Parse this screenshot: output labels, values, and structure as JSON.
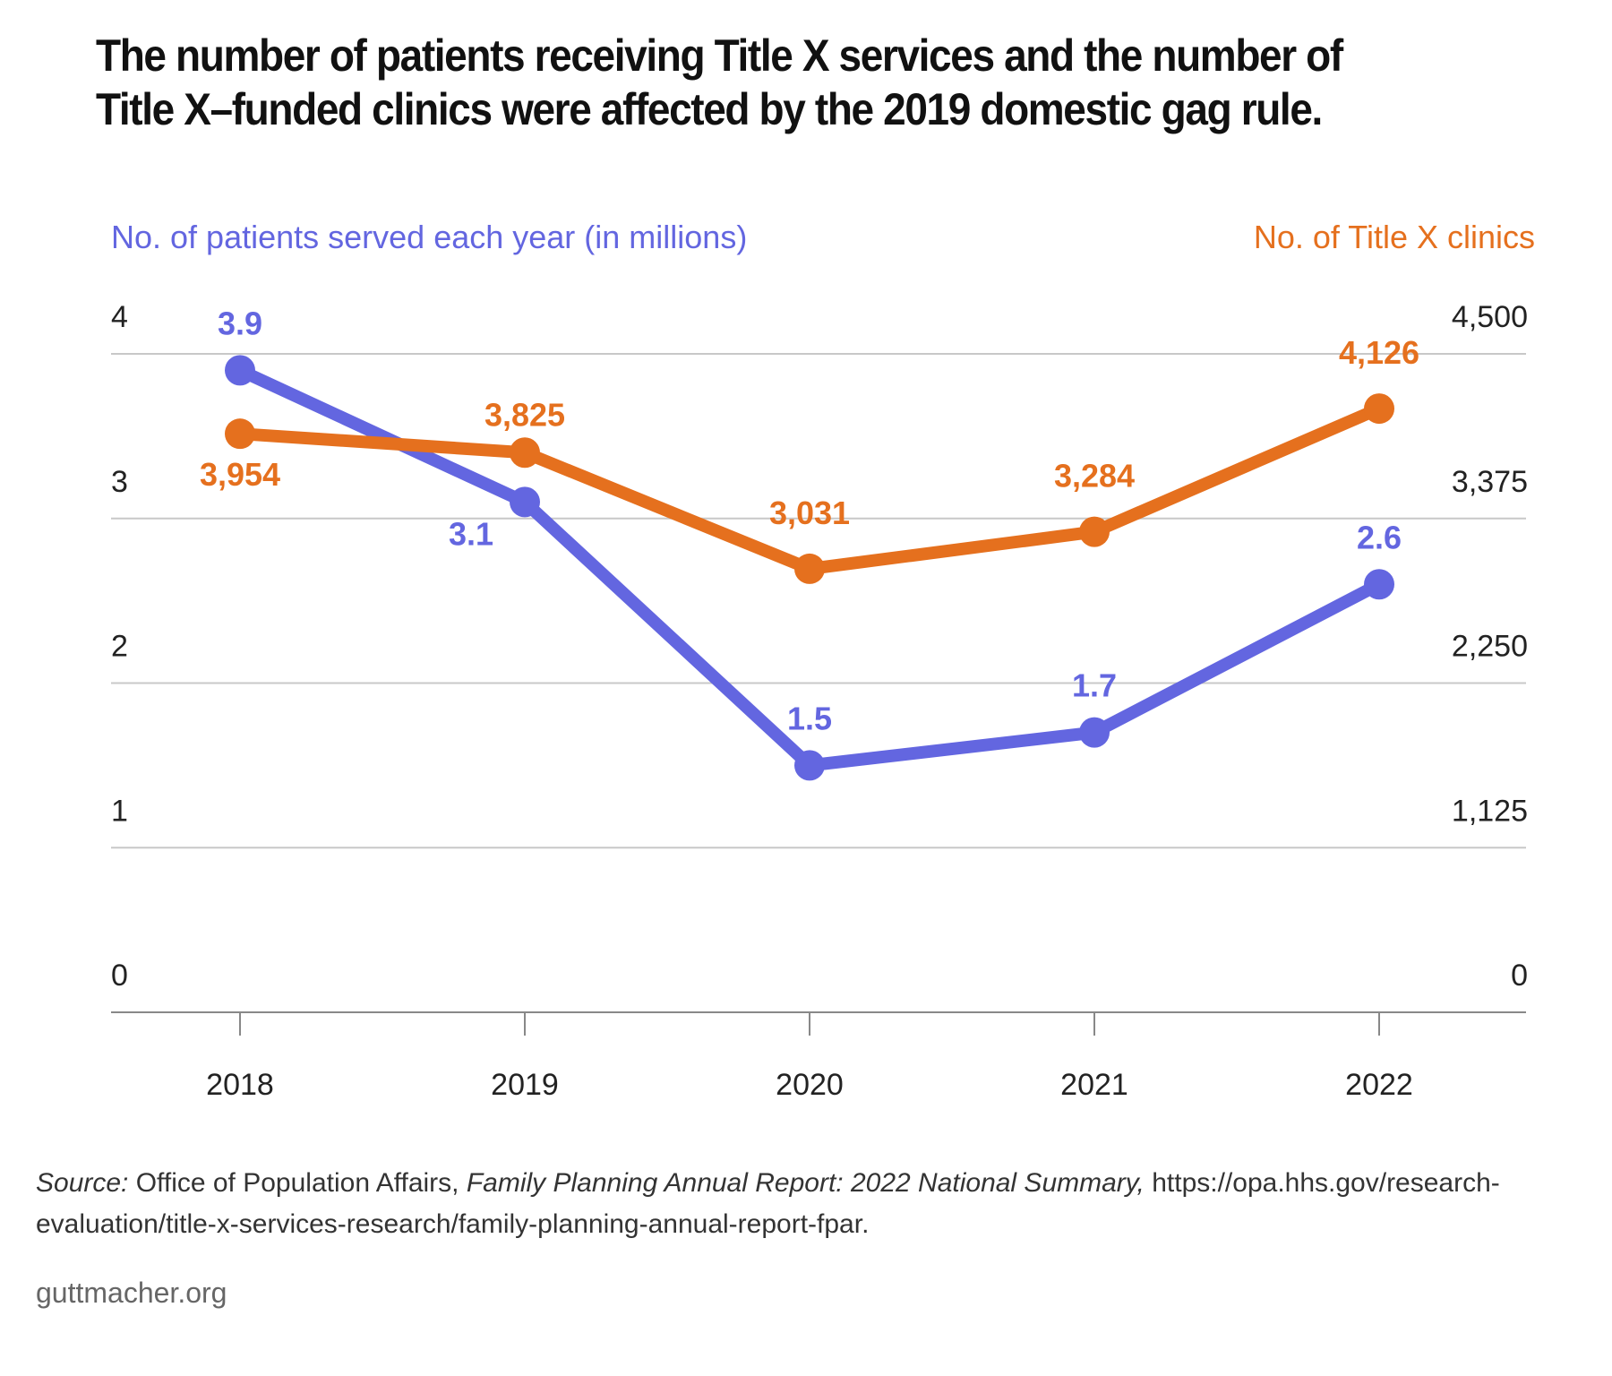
{
  "title": "The number of patients receiving Title X services and the number of Title X–funded clinics were affected by the 2019 domestic gag rule.",
  "source": {
    "label": "Source:",
    "org": " Office of Population Affairs, ",
    "report": "Family Planning Annual Report: 2022 National Summary,",
    "url": " https://opa.hhs.gov/research-evaluation/title-x-services-research/family-planning-annual-report-fpar."
  },
  "footer": "guttmacher.org",
  "colors": {
    "patients": "#6366e0",
    "clinics": "#e5701e",
    "grid": "#c8c8c8",
    "axis": "#888888"
  },
  "chart_data": {
    "type": "line",
    "x": [
      "2018",
      "2019",
      "2020",
      "2021",
      "2022"
    ],
    "left_axis": {
      "label": "No. of patients served each year (in millions)",
      "ticks": [
        "0",
        "1",
        "2",
        "3",
        "4"
      ],
      "range": [
        0,
        4
      ]
    },
    "right_axis": {
      "label": "No. of Title X clinics",
      "ticks": [
        "0",
        "1,125",
        "2,250",
        "3,375",
        "4,500"
      ],
      "range": [
        0,
        4500
      ]
    },
    "series": [
      {
        "key": "patients",
        "axis": "left",
        "values": [
          3.9,
          3.1,
          1.5,
          1.7,
          2.6
        ],
        "labels": [
          "3.9",
          "3.1",
          "1.5",
          "1.7",
          "2.6"
        ]
      },
      {
        "key": "clinics",
        "axis": "right",
        "values": [
          3954,
          3825,
          3031,
          3284,
          4126
        ],
        "labels": [
          "3,954",
          "3,825",
          "3,031",
          "3,284",
          "4,126"
        ]
      }
    ],
    "grid": true
  }
}
